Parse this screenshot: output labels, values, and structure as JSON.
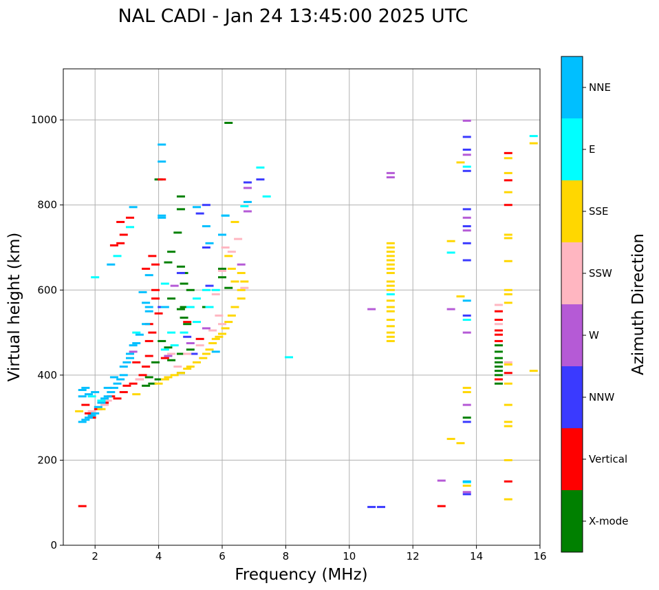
{
  "chart_data": {
    "type": "scatter",
    "title": "NAL CADI - Jan 24 13:45:00 2025 UTC",
    "xlabel": "Frequency (MHz)",
    "ylabel": "Virtual height (km)",
    "xlim": [
      1,
      16
    ],
    "ylim": [
      0,
      1120
    ],
    "xticks": [
      2,
      4,
      6,
      8,
      10,
      12,
      14,
      16
    ],
    "yticks": [
      0,
      200,
      400,
      600,
      800,
      1000
    ],
    "grid": true,
    "colorbar": {
      "label": "Azimuth Direction",
      "categories": [
        {
          "name": "X-mode",
          "color": "#008000"
        },
        {
          "name": "Vertical",
          "color": "#ff0000"
        },
        {
          "name": "NNW",
          "color": "#3a3aff"
        },
        {
          "name": "W",
          "color": "#b55ad6"
        },
        {
          "name": "SSW",
          "color": "#ffb6c1"
        },
        {
          "name": "SSE",
          "color": "#ffd700"
        },
        {
          "name": "E",
          "color": "#00ffff"
        },
        {
          "name": "NNE",
          "color": "#00bfff"
        }
      ]
    },
    "series": [
      {
        "name": "X-mode",
        "points": [
          [
            6.2,
            993
          ],
          [
            4.0,
            860
          ],
          [
            4.7,
            820
          ],
          [
            4.7,
            790
          ],
          [
            4.6,
            735
          ],
          [
            4.4,
            690
          ],
          [
            4.3,
            665
          ],
          [
            4.7,
            655
          ],
          [
            4.8,
            640
          ],
          [
            4.8,
            615
          ],
          [
            5.0,
            600
          ],
          [
            4.4,
            580
          ],
          [
            4.8,
            560
          ],
          [
            5.5,
            560
          ],
          [
            4.7,
            555
          ],
          [
            4.8,
            535
          ],
          [
            4.9,
            520
          ],
          [
            4.1,
            480
          ],
          [
            4.3,
            465
          ],
          [
            4.7,
            450
          ],
          [
            5.0,
            460
          ],
          [
            4.4,
            435
          ],
          [
            3.9,
            430
          ],
          [
            3.7,
            395
          ],
          [
            3.8,
            380
          ],
          [
            4.0,
            390
          ],
          [
            3.6,
            375
          ],
          [
            4.7,
            405
          ],
          [
            6.0,
            650
          ],
          [
            6.2,
            605
          ],
          [
            6.0,
            630
          ],
          [
            14.7,
            470
          ],
          [
            14.7,
            455
          ],
          [
            14.7,
            440
          ],
          [
            14.7,
            430
          ],
          [
            14.7,
            420
          ],
          [
            14.7,
            410
          ],
          [
            14.7,
            400
          ],
          [
            14.7,
            380
          ],
          [
            13.7,
            300
          ]
        ]
      },
      {
        "name": "Vertical",
        "points": [
          [
            1.6,
            92
          ],
          [
            1.7,
            330
          ],
          [
            1.8,
            310
          ],
          [
            1.9,
            300
          ],
          [
            2.1,
            320
          ],
          [
            2.3,
            335
          ],
          [
            2.5,
            350
          ],
          [
            2.7,
            345
          ],
          [
            2.9,
            360
          ],
          [
            3.0,
            375
          ],
          [
            3.2,
            380
          ],
          [
            3.4,
            390
          ],
          [
            3.6,
            420
          ],
          [
            3.7,
            445
          ],
          [
            3.7,
            480
          ],
          [
            3.8,
            500
          ],
          [
            3.7,
            520
          ],
          [
            4.0,
            545
          ],
          [
            3.9,
            600
          ],
          [
            3.9,
            580
          ],
          [
            3.8,
            680
          ],
          [
            3.9,
            660
          ],
          [
            3.6,
            650
          ],
          [
            2.8,
            760
          ],
          [
            2.9,
            730
          ],
          [
            3.1,
            770
          ],
          [
            2.6,
            705
          ],
          [
            4.1,
            860
          ],
          [
            2.8,
            710
          ],
          [
            4.2,
            440
          ],
          [
            4.9,
            525
          ],
          [
            5.3,
            485
          ],
          [
            12.9,
            92
          ],
          [
            14.7,
            550
          ],
          [
            14.7,
            530
          ],
          [
            14.7,
            505
          ],
          [
            14.7,
            495
          ],
          [
            14.7,
            480
          ],
          [
            14.7,
            390
          ],
          [
            15.0,
            922
          ],
          [
            15.0,
            858
          ],
          [
            15.0,
            800
          ],
          [
            15.0,
            405
          ],
          [
            15.0,
            150
          ],
          [
            3.5,
            400
          ],
          [
            3.3,
            430
          ]
        ]
      },
      {
        "name": "NNW",
        "points": [
          [
            6.8,
            853
          ],
          [
            7.2,
            860
          ],
          [
            5.5,
            800
          ],
          [
            5.5,
            700
          ],
          [
            5.3,
            780
          ],
          [
            5.6,
            610
          ],
          [
            4.7,
            640
          ],
          [
            4.9,
            490
          ],
          [
            10.7,
            90
          ],
          [
            11.0,
            90
          ],
          [
            13.7,
            960
          ],
          [
            13.7,
            930
          ],
          [
            13.7,
            880
          ],
          [
            13.7,
            790
          ],
          [
            13.7,
            750
          ],
          [
            13.7,
            710
          ],
          [
            13.7,
            670
          ],
          [
            13.7,
            540
          ],
          [
            13.7,
            290
          ],
          [
            13.7,
            120
          ],
          [
            4.1,
            560
          ],
          [
            5.1,
            450
          ]
        ]
      },
      {
        "name": "W",
        "points": [
          [
            6.8,
            840
          ],
          [
            6.8,
            785
          ],
          [
            6.6,
            660
          ],
          [
            11.3,
            875
          ],
          [
            11.3,
            865
          ],
          [
            10.7,
            555
          ],
          [
            13.2,
            555
          ],
          [
            13.7,
            998
          ],
          [
            13.7,
            918
          ],
          [
            13.7,
            770
          ],
          [
            13.7,
            740
          ],
          [
            13.7,
            500
          ],
          [
            12.9,
            152
          ],
          [
            13.7,
            330
          ],
          [
            13.7,
            125
          ],
          [
            4.5,
            610
          ],
          [
            5.0,
            475
          ],
          [
            5.5,
            510
          ],
          [
            4.3,
            445
          ],
          [
            3.2,
            455
          ]
        ]
      },
      {
        "name": "SSW",
        "points": [
          [
            6.5,
            720
          ],
          [
            6.3,
            690
          ],
          [
            6.0,
            645
          ],
          [
            5.8,
            590
          ],
          [
            5.9,
            540
          ],
          [
            6.0,
            520
          ],
          [
            5.7,
            505
          ],
          [
            4.4,
            450
          ],
          [
            4.9,
            450
          ],
          [
            3.4,
            390
          ],
          [
            2.4,
            340
          ],
          [
            1.9,
            315
          ],
          [
            2.3,
            330
          ],
          [
            14.7,
            565
          ],
          [
            14.7,
            520
          ],
          [
            15.0,
            430
          ],
          [
            5.3,
            470
          ],
          [
            4.6,
            420
          ],
          [
            6.1,
            700
          ],
          [
            6.7,
            605
          ]
        ]
      },
      {
        "name": "SSE",
        "points": [
          [
            6.4,
            760
          ],
          [
            6.7,
            620
          ],
          [
            6.6,
            580
          ],
          [
            6.4,
            560
          ],
          [
            6.3,
            540
          ],
          [
            6.2,
            525
          ],
          [
            6.1,
            510
          ],
          [
            6.0,
            497
          ],
          [
            5.9,
            490
          ],
          [
            5.8,
            485
          ],
          [
            5.7,
            475
          ],
          [
            5.6,
            460
          ],
          [
            5.5,
            450
          ],
          [
            5.4,
            440
          ],
          [
            5.2,
            430
          ],
          [
            5.0,
            420
          ],
          [
            4.9,
            415
          ],
          [
            4.7,
            405
          ],
          [
            4.5,
            400
          ],
          [
            4.3,
            395
          ],
          [
            4.2,
            390
          ],
          [
            4.0,
            380
          ],
          [
            3.3,
            355
          ],
          [
            2.2,
            320
          ],
          [
            1.5,
            315
          ],
          [
            6.6,
            600
          ],
          [
            6.4,
            620
          ],
          [
            6.2,
            680
          ],
          [
            6.3,
            650
          ],
          [
            6.6,
            640
          ],
          [
            11.3,
            710
          ],
          [
            11.3,
            700
          ],
          [
            11.3,
            690
          ],
          [
            11.3,
            680
          ],
          [
            11.3,
            670
          ],
          [
            11.3,
            660
          ],
          [
            11.3,
            650
          ],
          [
            11.3,
            640
          ],
          [
            11.3,
            620
          ],
          [
            11.3,
            610
          ],
          [
            11.3,
            600
          ],
          [
            11.3,
            575
          ],
          [
            11.3,
            560
          ],
          [
            11.3,
            550
          ],
          [
            11.3,
            530
          ],
          [
            11.3,
            515
          ],
          [
            11.3,
            500
          ],
          [
            11.3,
            490
          ],
          [
            11.3,
            480
          ],
          [
            13.2,
            715
          ],
          [
            13.5,
            900
          ],
          [
            13.5,
            585
          ],
          [
            13.2,
            250
          ],
          [
            13.5,
            240
          ],
          [
            13.7,
            370
          ],
          [
            13.7,
            360
          ],
          [
            13.7,
            140
          ],
          [
            15.0,
            910
          ],
          [
            15.0,
            875
          ],
          [
            15.0,
            830
          ],
          [
            15.0,
            730
          ],
          [
            15.0,
            722
          ],
          [
            15.0,
            668
          ],
          [
            15.0,
            600
          ],
          [
            15.0,
            590
          ],
          [
            15.0,
            570
          ],
          [
            15.0,
            425
          ],
          [
            15.0,
            380
          ],
          [
            15.0,
            330
          ],
          [
            15.0,
            290
          ],
          [
            15.0,
            280
          ],
          [
            15.0,
            200
          ],
          [
            15.0,
            108
          ],
          [
            15.8,
            945
          ],
          [
            15.8,
            410
          ]
        ]
      },
      {
        "name": "E",
        "points": [
          [
            7.2,
            888
          ],
          [
            7.4,
            820
          ],
          [
            6.1,
            775
          ],
          [
            6.7,
            797
          ],
          [
            5.8,
            600
          ],
          [
            5.5,
            600
          ],
          [
            5.2,
            580
          ],
          [
            5.0,
            560
          ],
          [
            4.8,
            500
          ],
          [
            5.6,
            560
          ],
          [
            4.4,
            500
          ],
          [
            4.2,
            460
          ],
          [
            4.5,
            470
          ],
          [
            5.2,
            525
          ],
          [
            3.3,
            500
          ],
          [
            2.0,
            630
          ],
          [
            2.7,
            680
          ],
          [
            3.1,
            748
          ],
          [
            4.2,
            615
          ],
          [
            13.2,
            688
          ],
          [
            13.7,
            890
          ],
          [
            13.7,
            530
          ],
          [
            13.7,
            148
          ],
          [
            11.3,
            590
          ],
          [
            15.8,
            962
          ],
          [
            8.1,
            442
          ],
          [
            2.2,
            340
          ],
          [
            1.9,
            350
          ]
        ]
      },
      {
        "name": "NNE",
        "points": [
          [
            4.1,
            942
          ],
          [
            4.1,
            902
          ],
          [
            4.1,
            775
          ],
          [
            4.1,
            770
          ],
          [
            3.2,
            795
          ],
          [
            5.2,
            795
          ],
          [
            5.5,
            750
          ],
          [
            5.6,
            710
          ],
          [
            6.0,
            730
          ],
          [
            6.1,
            775
          ],
          [
            3.7,
            635
          ],
          [
            3.5,
            595
          ],
          [
            3.6,
            570
          ],
          [
            3.7,
            550
          ],
          [
            3.6,
            520
          ],
          [
            3.4,
            495
          ],
          [
            3.2,
            470
          ],
          [
            3.1,
            450
          ],
          [
            3.0,
            430
          ],
          [
            2.9,
            400
          ],
          [
            2.8,
            390
          ],
          [
            2.7,
            380
          ],
          [
            2.6,
            370
          ],
          [
            2.5,
            360
          ],
          [
            2.4,
            350
          ],
          [
            2.3,
            345
          ],
          [
            2.2,
            335
          ],
          [
            2.1,
            325
          ],
          [
            2.0,
            310
          ],
          [
            1.9,
            305
          ],
          [
            1.8,
            300
          ],
          [
            1.7,
            295
          ],
          [
            1.6,
            290
          ],
          [
            1.6,
            350
          ],
          [
            1.6,
            365
          ],
          [
            1.7,
            370
          ],
          [
            1.8,
            355
          ],
          [
            2.0,
            360
          ],
          [
            2.4,
            370
          ],
          [
            2.6,
            395
          ],
          [
            2.9,
            420
          ],
          [
            3.1,
            440
          ],
          [
            3.3,
            475
          ],
          [
            3.7,
            560
          ],
          [
            4.2,
            560
          ],
          [
            2.5,
            660
          ],
          [
            5.8,
            455
          ],
          [
            6.8,
            807
          ],
          [
            13.7,
            575
          ],
          [
            13.7,
            150
          ]
        ]
      }
    ]
  }
}
